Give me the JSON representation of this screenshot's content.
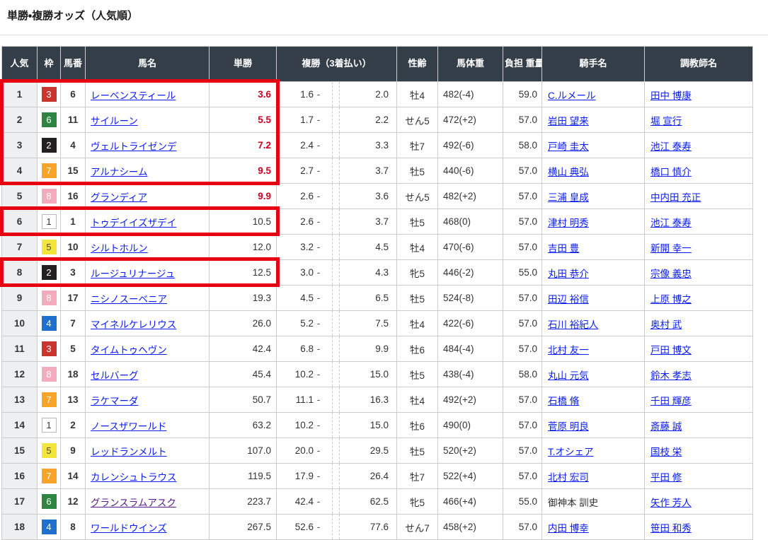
{
  "page_title": "単勝・複勝オッズ（人気順）",
  "colors": {
    "header_bg": "#333e48",
    "rank_col_bg": "#eeeff1",
    "grid_border": "#cccccc",
    "link_blue": "#0a1cee",
    "link_visited_purple": "#551a8b",
    "hot_odds_red": "#cc0022",
    "highlight_box_red": "#e50012",
    "frame_colors": {
      "1": "#ffffff",
      "2": "#211f1f",
      "3": "#c9342e",
      "4": "#2071cf",
      "5": "#f4e53c",
      "6": "#2e8442",
      "7": "#f7a428",
      "8": "#f5abbe"
    }
  },
  "table": {
    "headers": [
      "人気",
      "枠",
      "馬番",
      "馬名",
      "単勝",
      "複勝（3着払い）",
      "性齢",
      "馬体重",
      "負担\n重量",
      "騎手名",
      "調教師名"
    ],
    "place_separator": "-",
    "rows": [
      {
        "rank": "1",
        "frame": "3",
        "horse_no": "6",
        "horse": "レーベンスティール",
        "win": "3.6",
        "win_hot": true,
        "pmin": "1.6",
        "pmax": "2.0",
        "sex_age": "牡4",
        "weight": "482(-4)",
        "impost": "59.0",
        "jockey": "C.ルメール",
        "trainer": "田中 博康"
      },
      {
        "rank": "2",
        "frame": "6",
        "horse_no": "11",
        "horse": "サイルーン",
        "win": "5.5",
        "win_hot": true,
        "pmin": "1.7",
        "pmax": "2.2",
        "sex_age": "せん5",
        "weight": "472(+2)",
        "impost": "57.0",
        "jockey": "岩田 望来",
        "trainer": "堀 宣行"
      },
      {
        "rank": "3",
        "frame": "2",
        "horse_no": "4",
        "horse": "ヴェルトライゼンデ",
        "win": "7.2",
        "win_hot": true,
        "pmin": "2.4",
        "pmax": "3.3",
        "sex_age": "牡7",
        "weight": "492(-6)",
        "impost": "58.0",
        "jockey": "戸崎 圭太",
        "trainer": "池江 泰寿"
      },
      {
        "rank": "4",
        "frame": "7",
        "horse_no": "15",
        "horse": "アルナシーム",
        "win": "9.5",
        "win_hot": true,
        "pmin": "2.7",
        "pmax": "3.7",
        "sex_age": "牡5",
        "weight": "440(-6)",
        "impost": "57.0",
        "jockey": "横山 典弘",
        "trainer": "橋口 慎介"
      },
      {
        "rank": "5",
        "frame": "8",
        "horse_no": "16",
        "horse": "グランディア",
        "win": "9.9",
        "win_hot": true,
        "pmin": "2.6",
        "pmax": "3.6",
        "sex_age": "せん5",
        "weight": "482(+2)",
        "impost": "57.0",
        "jockey": "三浦 皇成",
        "trainer": "中内田 充正"
      },
      {
        "rank": "6",
        "frame": "1",
        "horse_no": "1",
        "horse": "トゥデイイズザデイ",
        "win": "10.5",
        "win_hot": false,
        "pmin": "2.6",
        "pmax": "3.7",
        "sex_age": "牡5",
        "weight": "468(0)",
        "impost": "57.0",
        "jockey": "津村 明秀",
        "trainer": "池江 泰寿"
      },
      {
        "rank": "7",
        "frame": "5",
        "horse_no": "10",
        "horse": "シルトホルン",
        "win": "12.0",
        "win_hot": false,
        "pmin": "3.2",
        "pmax": "4.5",
        "sex_age": "牡4",
        "weight": "470(-6)",
        "impost": "57.0",
        "jockey": "吉田 豊",
        "trainer": "新開 幸一"
      },
      {
        "rank": "8",
        "frame": "2",
        "horse_no": "3",
        "horse": "ルージュリナージュ",
        "win": "12.5",
        "win_hot": false,
        "pmin": "3.0",
        "pmax": "4.3",
        "sex_age": "牝5",
        "weight": "446(-2)",
        "impost": "55.0",
        "jockey": "丸田 恭介",
        "trainer": "宗像 義忠"
      },
      {
        "rank": "9",
        "frame": "8",
        "horse_no": "17",
        "horse": "ニシノスーベニア",
        "win": "19.3",
        "win_hot": false,
        "pmin": "4.5",
        "pmax": "6.5",
        "sex_age": "牡5",
        "weight": "524(-8)",
        "impost": "57.0",
        "jockey": "田辺 裕信",
        "trainer": "上原 博之"
      },
      {
        "rank": "10",
        "frame": "4",
        "horse_no": "7",
        "horse": "マイネルケレリウス",
        "win": "26.0",
        "win_hot": false,
        "pmin": "5.2",
        "pmax": "7.5",
        "sex_age": "牡4",
        "weight": "422(-6)",
        "impost": "57.0",
        "jockey": "石川 裕紀人",
        "trainer": "奥村 武"
      },
      {
        "rank": "11",
        "frame": "3",
        "horse_no": "5",
        "horse": "タイムトゥヘヴン",
        "win": "42.4",
        "win_hot": false,
        "pmin": "6.8",
        "pmax": "9.9",
        "sex_age": "牡6",
        "weight": "484(-4)",
        "impost": "57.0",
        "jockey": "北村 友一",
        "trainer": "戸田 博文"
      },
      {
        "rank": "12",
        "frame": "8",
        "horse_no": "18",
        "horse": "セルバーグ",
        "win": "45.4",
        "win_hot": false,
        "pmin": "10.2",
        "pmax": "15.0",
        "sex_age": "牡5",
        "weight": "438(-4)",
        "impost": "58.0",
        "jockey": "丸山 元気",
        "trainer": "鈴木 孝志"
      },
      {
        "rank": "13",
        "frame": "7",
        "horse_no": "13",
        "horse": "ラケマーダ",
        "win": "50.7",
        "win_hot": false,
        "pmin": "11.1",
        "pmax": "16.3",
        "sex_age": "牡4",
        "weight": "492(+2)",
        "impost": "57.0",
        "jockey": "石橋 脩",
        "trainer": "千田 輝彦"
      },
      {
        "rank": "14",
        "frame": "1",
        "horse_no": "2",
        "horse": "ノースザワールド",
        "win": "63.2",
        "win_hot": false,
        "pmin": "10.2",
        "pmax": "15.0",
        "sex_age": "牡6",
        "weight": "490(0)",
        "impost": "57.0",
        "jockey": "菅原 明良",
        "trainer": "斎藤 誠"
      },
      {
        "rank": "15",
        "frame": "5",
        "horse_no": "9",
        "horse": "レッドランメルト",
        "win": "107.0",
        "win_hot": false,
        "pmin": "20.0",
        "pmax": "29.5",
        "sex_age": "牡5",
        "weight": "520(+2)",
        "impost": "57.0",
        "jockey": "T.オシェア",
        "trainer": "国枝 栄"
      },
      {
        "rank": "16",
        "frame": "7",
        "horse_no": "14",
        "horse": "カレンシュトラウス",
        "win": "119.5",
        "win_hot": false,
        "pmin": "17.9",
        "pmax": "26.4",
        "sex_age": "牡7",
        "weight": "522(+4)",
        "impost": "57.0",
        "jockey": "北村 宏司",
        "trainer": "平田 修"
      },
      {
        "rank": "17",
        "frame": "6",
        "horse_no": "12",
        "horse": "グランスラムアスク",
        "win": "223.7",
        "win_hot": false,
        "pmin": "42.4",
        "pmax": "62.5",
        "sex_age": "牝5",
        "weight": "466(+4)",
        "impost": "55.0",
        "jockey": "御神本 訓史",
        "jockey_link": false,
        "trainer": "矢作 芳人",
        "horse_visited": true
      },
      {
        "rank": "18",
        "frame": "4",
        "horse_no": "8",
        "horse": "ワールドウインズ",
        "win": "267.5",
        "win_hot": false,
        "pmin": "52.6",
        "pmax": "77.6",
        "sex_age": "せん7",
        "weight": "458(+2)",
        "impost": "57.0",
        "jockey": "内田 博幸",
        "trainer": "笹田 和秀"
      }
    ]
  },
  "highlight_boxes": [
    {
      "row_start": 1,
      "row_end": 4
    },
    {
      "row_start": 6,
      "row_end": 6
    },
    {
      "row_start": 8,
      "row_end": 8
    }
  ]
}
